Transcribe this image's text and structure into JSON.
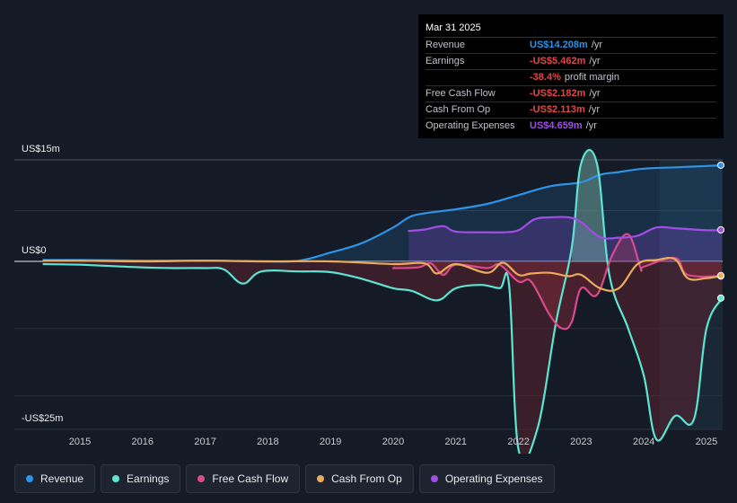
{
  "chart_data": {
    "type": "area",
    "y_axis": {
      "top_label": "US$15m",
      "zero_label": "US$0",
      "bottom_label": "-US$25m",
      "min": -25,
      "max": 15,
      "unit": "US$m"
    },
    "x_ticks": [
      "2015",
      "2016",
      "2017",
      "2018",
      "2019",
      "2020",
      "2021",
      "2022",
      "2023",
      "2024",
      "2025"
    ],
    "series": [
      {
        "name": "Revenue",
        "color": "#2e93e6",
        "points": [
          [
            2014.42,
            0.2
          ],
          [
            2015.0,
            0.2
          ],
          [
            2016.0,
            0.1
          ],
          [
            2017.0,
            0.1
          ],
          [
            2018.0,
            0.0
          ],
          [
            2018.5,
            0.1
          ],
          [
            2019.0,
            1.3
          ],
          [
            2019.5,
            2.7
          ],
          [
            2020.0,
            5.0
          ],
          [
            2020.25,
            6.5
          ],
          [
            2020.5,
            7.1
          ],
          [
            2021.0,
            7.7
          ],
          [
            2021.5,
            8.5
          ],
          [
            2022.0,
            9.8
          ],
          [
            2022.5,
            11.1
          ],
          [
            2023.0,
            11.7
          ],
          [
            2023.3,
            12.8
          ],
          [
            2023.6,
            13.2
          ],
          [
            2024.0,
            13.7
          ],
          [
            2024.5,
            13.9
          ],
          [
            2025.0,
            14.1
          ],
          [
            2025.25,
            14.208
          ]
        ]
      },
      {
        "name": "Earnings",
        "color": "#5ce5d3",
        "points": [
          [
            2014.42,
            -0.4
          ],
          [
            2015.0,
            -0.5
          ],
          [
            2015.5,
            -0.7
          ],
          [
            2016.0,
            -0.9
          ],
          [
            2016.5,
            -1.0
          ],
          [
            2017.0,
            -1.0
          ],
          [
            2017.3,
            -1.2
          ],
          [
            2017.6,
            -3.3
          ],
          [
            2017.9,
            -1.5
          ],
          [
            2018.5,
            -1.5
          ],
          [
            2019.0,
            -1.6
          ],
          [
            2019.5,
            -2.6
          ],
          [
            2020.0,
            -4.0
          ],
          [
            2020.3,
            -4.4
          ],
          [
            2020.7,
            -5.8
          ],
          [
            2021.0,
            -4.0
          ],
          [
            2021.4,
            -3.5
          ],
          [
            2021.7,
            -4.0
          ],
          [
            2021.85,
            -3.5
          ],
          [
            2022.0,
            -28.0
          ],
          [
            2022.3,
            -25.0
          ],
          [
            2022.6,
            -9.0
          ],
          [
            2022.85,
            2.0
          ],
          [
            2023.0,
            14.5
          ],
          [
            2023.25,
            14.5
          ],
          [
            2023.45,
            -2.0
          ],
          [
            2023.75,
            -10.0
          ],
          [
            2024.0,
            -17.0
          ],
          [
            2024.2,
            -26.5
          ],
          [
            2024.5,
            -23.0
          ],
          [
            2024.8,
            -23.5
          ],
          [
            2025.0,
            -10.0
          ],
          [
            2025.25,
            -5.462
          ]
        ]
      },
      {
        "name": "Free Cash Flow",
        "color": "#d94a8c",
        "points": [
          [
            2020.0,
            -1.0
          ],
          [
            2020.4,
            -0.9
          ],
          [
            2020.6,
            -0.3
          ],
          [
            2020.8,
            -2.0
          ],
          [
            2021.0,
            -0.5
          ],
          [
            2021.5,
            -1.0
          ],
          [
            2021.7,
            -0.5
          ],
          [
            2022.0,
            -3.0
          ],
          [
            2022.2,
            -3.0
          ],
          [
            2022.5,
            -8.0
          ],
          [
            2022.7,
            -10.0
          ],
          [
            2022.85,
            -9.0
          ],
          [
            2023.0,
            -4.0
          ],
          [
            2023.25,
            -5.0
          ],
          [
            2023.5,
            1.0
          ],
          [
            2023.75,
            4.0
          ],
          [
            2023.95,
            -1.0
          ],
          [
            2024.0,
            -0.8
          ],
          [
            2024.5,
            0.5
          ],
          [
            2024.7,
            -2.0
          ],
          [
            2025.25,
            -2.182
          ]
        ]
      },
      {
        "name": "Cash From Op",
        "color": "#e8ac5c",
        "points": [
          [
            2014.42,
            0.1
          ],
          [
            2015.0,
            0.1
          ],
          [
            2016.0,
            0.0
          ],
          [
            2017.0,
            0.1
          ],
          [
            2018.0,
            0.0
          ],
          [
            2019.0,
            0.0
          ],
          [
            2020.0,
            -0.4
          ],
          [
            2020.5,
            -0.3
          ],
          [
            2020.7,
            -1.8
          ],
          [
            2021.0,
            -0.4
          ],
          [
            2021.5,
            -1.7
          ],
          [
            2021.75,
            -0.2
          ],
          [
            2022.0,
            -2.0
          ],
          [
            2022.2,
            -1.8
          ],
          [
            2022.5,
            -1.7
          ],
          [
            2022.8,
            -2.2
          ],
          [
            2023.0,
            -2.0
          ],
          [
            2023.3,
            -4.0
          ],
          [
            2023.6,
            -4.0
          ],
          [
            2023.9,
            -0.4
          ],
          [
            2024.2,
            0.2
          ],
          [
            2024.5,
            0.3
          ],
          [
            2024.7,
            -2.5
          ],
          [
            2025.0,
            -2.5
          ],
          [
            2025.25,
            -2.113
          ]
        ]
      },
      {
        "name": "Operating Expenses",
        "color": "#a14de6",
        "points": [
          [
            2020.25,
            4.5
          ],
          [
            2020.5,
            4.7
          ],
          [
            2020.8,
            5.2
          ],
          [
            2021.0,
            4.4
          ],
          [
            2021.5,
            4.3
          ],
          [
            2021.75,
            4.3
          ],
          [
            2022.0,
            4.6
          ],
          [
            2022.25,
            6.2
          ],
          [
            2022.5,
            6.5
          ],
          [
            2022.8,
            6.5
          ],
          [
            2023.0,
            5.8
          ],
          [
            2023.3,
            3.6
          ],
          [
            2023.6,
            3.5
          ],
          [
            2023.9,
            3.8
          ],
          [
            2024.2,
            5.0
          ],
          [
            2024.5,
            4.9
          ],
          [
            2025.0,
            4.6
          ],
          [
            2025.25,
            4.659
          ]
        ]
      }
    ]
  },
  "tooltip": {
    "date": "Mar 31 2025",
    "rows": [
      {
        "name": "Revenue",
        "value": "US$14.208m",
        "unit": "/yr",
        "color": "#2e93e6"
      },
      {
        "name": "Earnings",
        "value": "-US$5.462m",
        "unit": "/yr",
        "color": "#e04848"
      },
      {
        "name": "",
        "value": "-38.4%",
        "unit": "profit margin",
        "color": "#e04848"
      },
      {
        "name": "Free Cash Flow",
        "value": "-US$2.182m",
        "unit": "/yr",
        "color": "#e04848"
      },
      {
        "name": "Cash From Op",
        "value": "-US$2.113m",
        "unit": "/yr",
        "color": "#e04848"
      },
      {
        "name": "Operating Expenses",
        "value": "US$4.659m",
        "unit": "/yr",
        "color": "#a14de6"
      }
    ]
  },
  "legend": [
    {
      "label": "Revenue",
      "color": "#2e93e6"
    },
    {
      "label": "Earnings",
      "color": "#5ce5d3"
    },
    {
      "label": "Free Cash Flow",
      "color": "#d94a8c"
    },
    {
      "label": "Cash From Op",
      "color": "#e8ac5c"
    },
    {
      "label": "Operating Expenses",
      "color": "#a14de6"
    }
  ]
}
